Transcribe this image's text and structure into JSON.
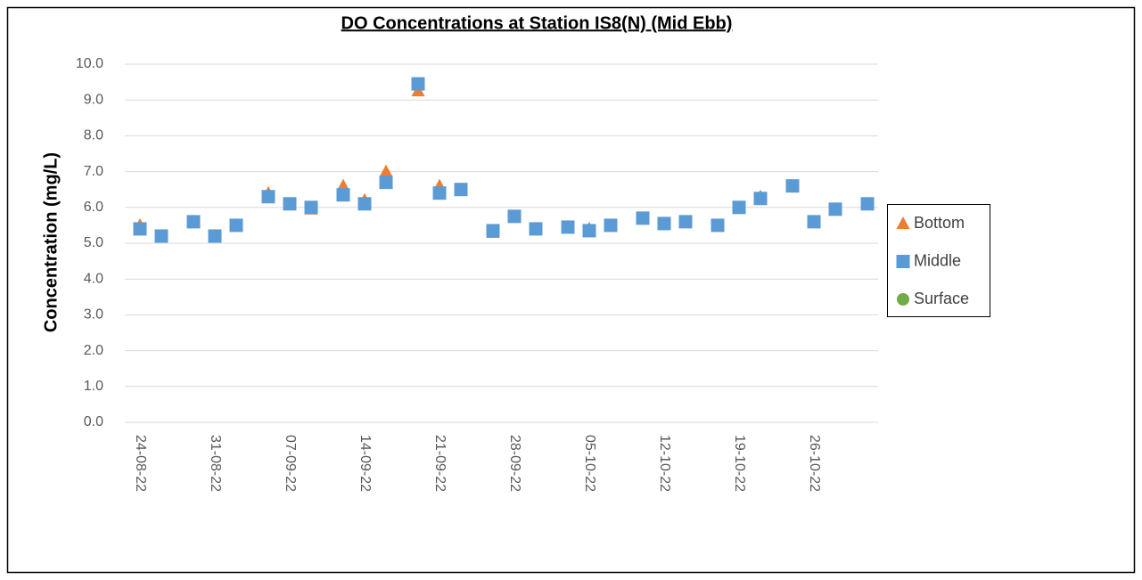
{
  "chart_data": {
    "type": "scatter",
    "title": "DO Concentrations at Station IS8(N) (Mid Ebb)",
    "y_label": "Concentration (mg/L)",
    "x": [
      "24-08-22",
      "26-08-22",
      "29-08-22",
      "31-08-22",
      "02-09-22",
      "05-09-22",
      "07-09-22",
      "09-09-22",
      "12-09-22",
      "14-09-22",
      "16-09-22",
      "19-09-22",
      "21-09-22",
      "23-09-22",
      "26-09-22",
      "28-09-22",
      "30-09-22",
      "03-10-22",
      "05-10-22",
      "07-10-22",
      "10-10-22",
      "12-10-22",
      "14-10-22",
      "17-10-22",
      "19-10-22",
      "21-10-22",
      "24-10-22",
      "26-10-22",
      "28-10-22",
      "31-10-22"
    ],
    "series": [
      {
        "name": "Bottom",
        "color": "#ed7d31",
        "marker": "triangle",
        "values": [
          5.5,
          5.2,
          5.6,
          5.2,
          5.5,
          6.4,
          6.1,
          5.95,
          6.6,
          6.2,
          7.0,
          9.25,
          6.6,
          6.5,
          5.3,
          5.75,
          5.4,
          5.45,
          5.4,
          5.5,
          5.7,
          5.55,
          5.6,
          5.5,
          6.0,
          6.3,
          6.6,
          5.6,
          5.95,
          6.1
        ]
      },
      {
        "name": "Middle",
        "color": "#5b9bd5",
        "marker": "square",
        "values": [
          5.4,
          5.2,
          5.6,
          5.2,
          5.5,
          6.3,
          6.1,
          6.0,
          6.35,
          6.1,
          6.7,
          9.45,
          6.4,
          6.5,
          5.35,
          5.75,
          5.4,
          5.45,
          5.35,
          5.5,
          5.7,
          5.55,
          5.6,
          5.5,
          6.0,
          6.25,
          6.6,
          5.6,
          5.95,
          6.1
        ]
      },
      {
        "name": "Surface",
        "color": "#70ad47",
        "marker": "circle",
        "values": [
          5.4,
          5.2,
          5.6,
          5.2,
          5.5,
          6.3,
          6.1,
          6.0,
          6.35,
          6.1,
          6.7,
          9.45,
          6.4,
          6.5,
          5.35,
          5.75,
          5.4,
          5.45,
          5.35,
          5.5,
          5.7,
          5.55,
          5.6,
          5.5,
          6.0,
          6.25,
          6.6,
          5.6,
          5.95,
          6.1
        ]
      }
    ],
    "xlim": [
      "24-08-22",
      "01-11-22"
    ],
    "xticks": [
      "24-08-22",
      "31-08-22",
      "07-09-22",
      "14-09-22",
      "21-09-22",
      "28-09-22",
      "05-10-22",
      "12-10-22",
      "19-10-22",
      "26-10-22"
    ],
    "ylim": [
      0,
      10
    ],
    "yticks": [
      {
        "value": 0,
        "label": "0.0"
      },
      {
        "value": 1,
        "label": "1.0"
      },
      {
        "value": 2,
        "label": "2.0"
      },
      {
        "value": 3,
        "label": "3.0"
      },
      {
        "value": 4,
        "label": "4.0"
      },
      {
        "value": 5,
        "label": "5.0"
      },
      {
        "value": 6,
        "label": "6.0"
      },
      {
        "value": 7,
        "label": "7.0"
      },
      {
        "value": 8,
        "label": "8.0"
      },
      {
        "value": 9,
        "label": "9.0"
      },
      {
        "value": 10,
        "label": "10.0"
      }
    ],
    "grid": true,
    "legend": "right"
  }
}
